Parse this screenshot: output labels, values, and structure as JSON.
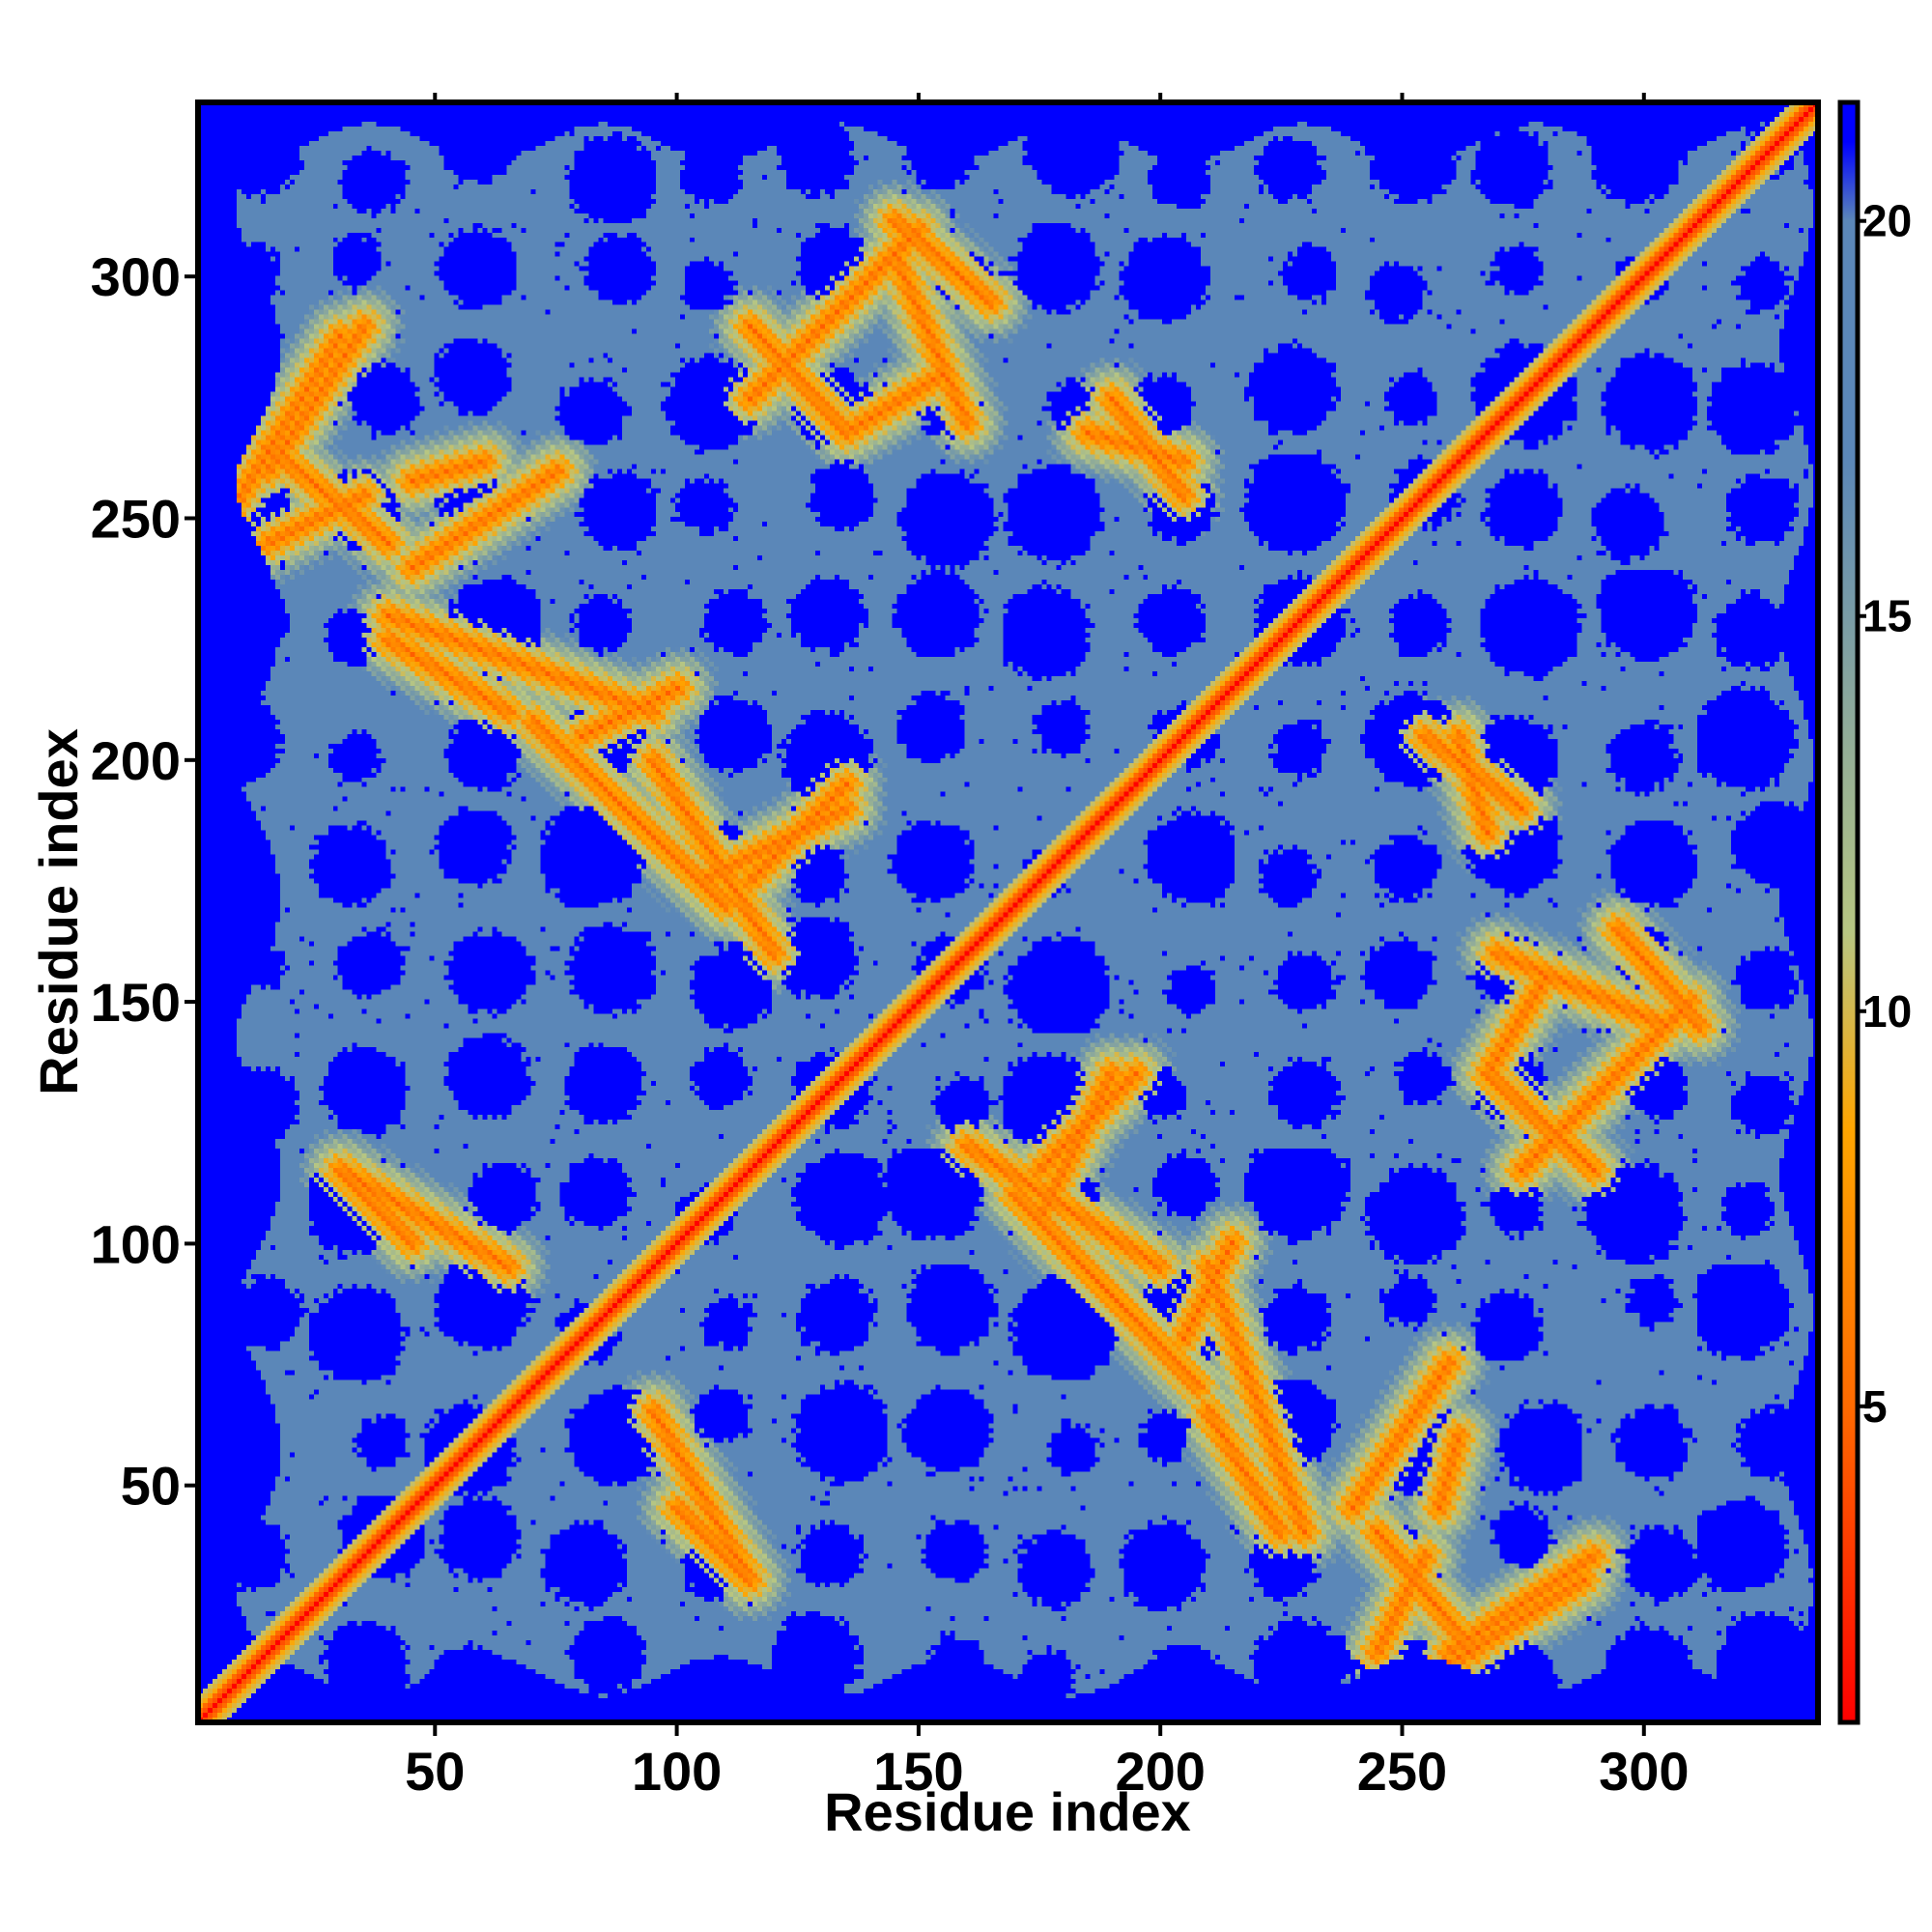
{
  "chart_data": {
    "type": "heatmap",
    "title": "",
    "xlabel": "Residue index",
    "ylabel": "Residue index",
    "n_residues": 336,
    "xlim": [
      1,
      336
    ],
    "ylim": [
      1,
      336
    ],
    "x_ticks": [
      50,
      100,
      150,
      200,
      250,
      300
    ],
    "y_ticks": [
      50,
      100,
      150,
      200,
      250,
      300
    ],
    "colorbar": {
      "min": 1,
      "max": 21.5,
      "ticks": [
        5,
        10,
        15,
        20
      ],
      "stops": [
        {
          "value": 1,
          "color": "#ff0000"
        },
        {
          "value": 5,
          "color": "#ff6a00"
        },
        {
          "value": 8.5,
          "color": "#ffa500"
        },
        {
          "value": 11,
          "color": "#b7c682"
        },
        {
          "value": 17,
          "color": "#5b87b8"
        },
        {
          "value": 20,
          "color": "#5b87b8"
        },
        {
          "value": 21,
          "color": "#0000ff"
        }
      ]
    },
    "far_value_color": "#0000ff",
    "mid_value_color": "#5b87b8",
    "contact_bands": [
      {
        "i1": 5,
        "j1": 248,
        "i2": 30,
        "j2": 288
      },
      {
        "i1": 15,
        "j1": 245,
        "i2": 35,
        "j2": 255
      },
      {
        "i1": 40,
        "j1": 225,
        "i2": 65,
        "j2": 210
      },
      {
        "i1": 45,
        "j1": 258,
        "i2": 60,
        "j2": 262
      },
      {
        "i1": 70,
        "j1": 208,
        "i2": 110,
        "j2": 170
      },
      {
        "i1": 80,
        "j1": 205,
        "i2": 100,
        "j2": 215
      },
      {
        "i1": 115,
        "j1": 175,
        "i2": 135,
        "j2": 195
      },
      {
        "i1": 115,
        "j1": 290,
        "i2": 135,
        "j2": 268
      },
      {
        "i1": 135,
        "j1": 268,
        "i2": 155,
        "j2": 280
      },
      {
        "i1": 145,
        "j1": 312,
        "i2": 165,
        "j2": 295
      },
      {
        "i1": 185,
        "j1": 268,
        "i2": 205,
        "j2": 262
      },
      {
        "i1": 30,
        "j1": 115,
        "i2": 45,
        "j2": 100
      },
      {
        "i1": 95,
        "j1": 65,
        "i2": 115,
        "j2": 30
      },
      {
        "i1": 160,
        "j1": 120,
        "i2": 200,
        "j2": 95
      },
      {
        "i1": 175,
        "j1": 105,
        "i2": 190,
        "j2": 135
      },
      {
        "i1": 210,
        "j1": 95,
        "i2": 230,
        "j2": 40
      },
      {
        "i1": 245,
        "j1": 40,
        "i2": 265,
        "j2": 15
      },
      {
        "i1": 260,
        "j1": 15,
        "i2": 290,
        "j2": 35
      },
      {
        "i1": 275,
        "j1": 115,
        "i2": 310,
        "j2": 150
      },
      {
        "i1": 270,
        "j1": 160,
        "i2": 305,
        "j2": 145
      },
      {
        "i1": 255,
        "j1": 205,
        "i2": 275,
        "j2": 190
      },
      {
        "i1": 240,
        "j1": 45,
        "i2": 260,
        "j2": 75
      }
    ]
  }
}
